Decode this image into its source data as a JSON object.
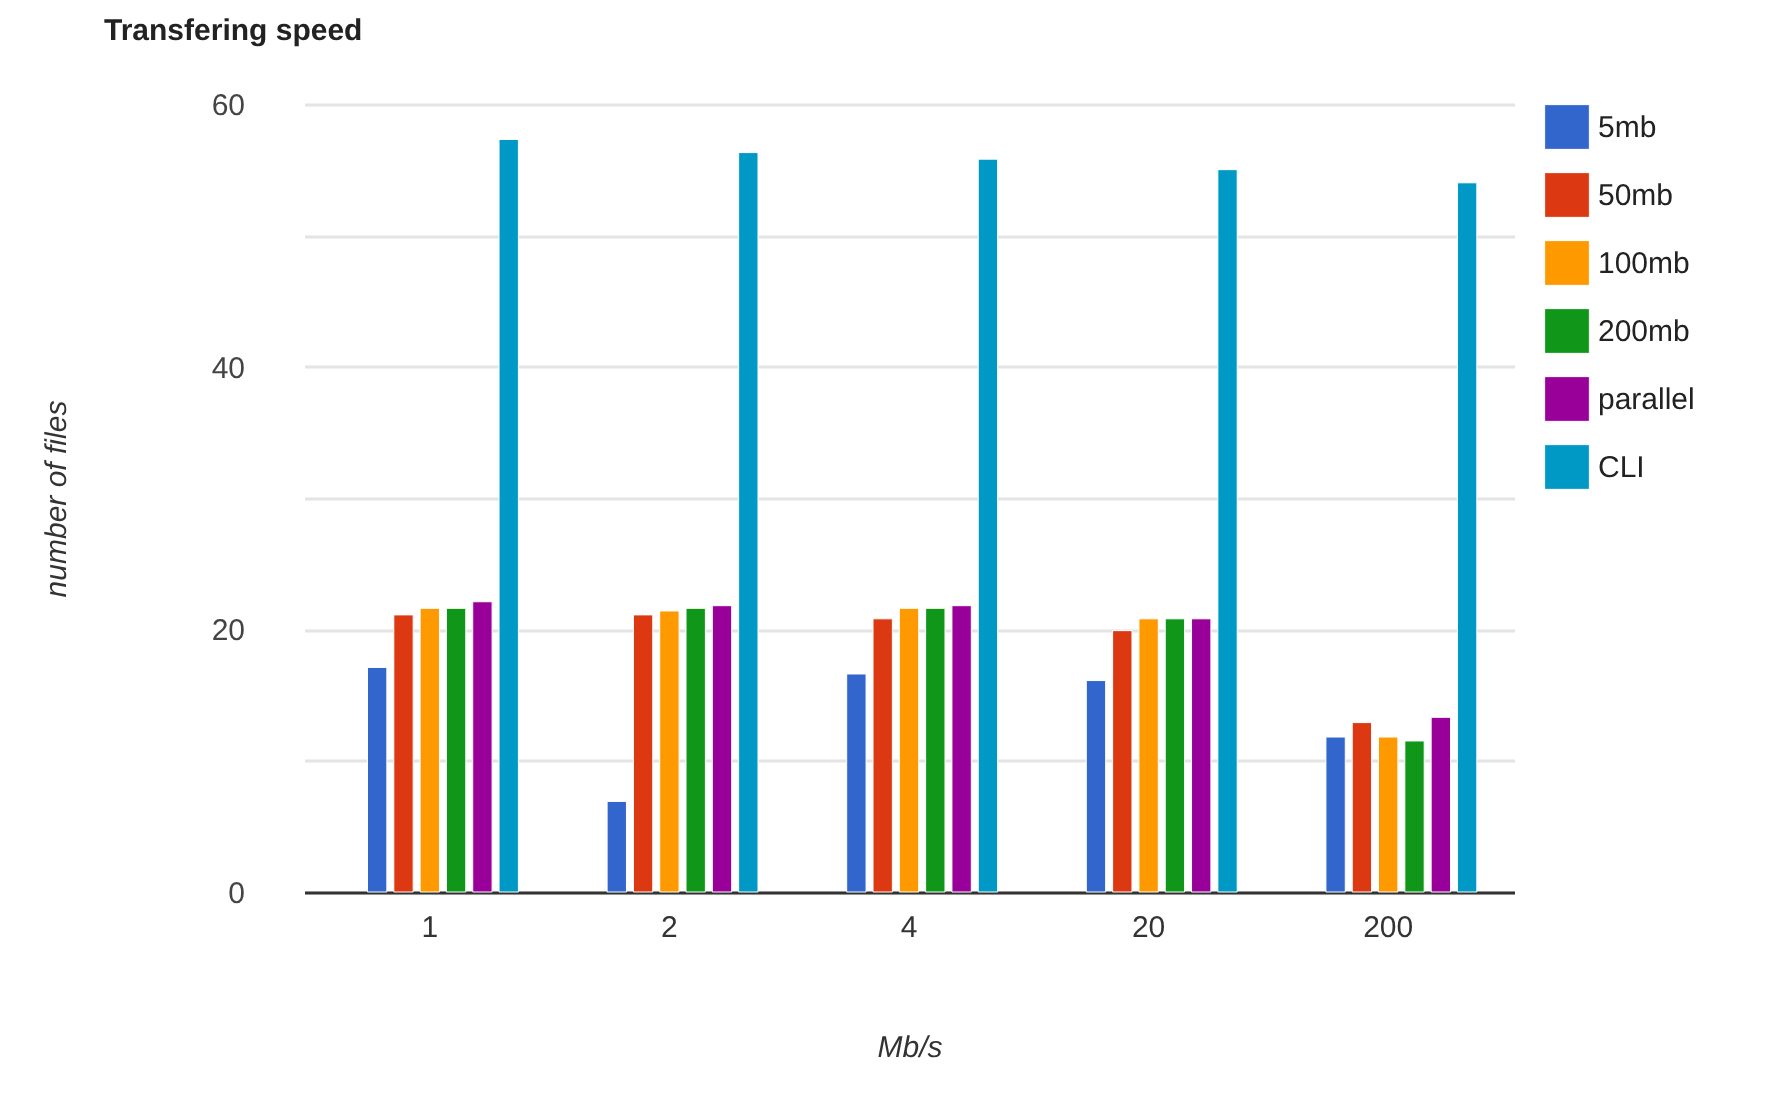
{
  "chart_data": {
    "type": "bar",
    "title": "Transfering speed",
    "xlabel": "Mb/s",
    "ylabel": "number of files",
    "categories": [
      "1",
      "2",
      "4",
      "20",
      "200"
    ],
    "series": [
      {
        "name": "5mb",
        "color": "#3366cc",
        "values": [
          17.1,
          6.9,
          16.6,
          16.1,
          11.8
        ]
      },
      {
        "name": "50mb",
        "color": "#dc3912",
        "values": [
          21.1,
          21.1,
          20.8,
          19.9,
          12.9
        ]
      },
      {
        "name": "100mb",
        "color": "#ff9900",
        "values": [
          21.6,
          21.4,
          21.6,
          20.8,
          11.8
        ]
      },
      {
        "name": "200mb",
        "color": "#109618",
        "values": [
          21.6,
          21.6,
          21.6,
          20.8,
          11.5
        ]
      },
      {
        "name": "parallel",
        "color": "#990099",
        "values": [
          22.1,
          21.8,
          21.8,
          20.8,
          13.3
        ]
      },
      {
        "name": "CLI",
        "color": "#0099c6",
        "values": [
          57.3,
          56.3,
          55.8,
          55.0,
          54.0
        ]
      }
    ],
    "ylim": [
      0,
      60
    ],
    "yticks": [
      0,
      {
        "value": 10,
        "label": null
      },
      20,
      {
        "value": 30,
        "label": null
      },
      40,
      {
        "value": 50,
        "label": null
      },
      60
    ],
    "grid": true,
    "legend": "top right"
  }
}
